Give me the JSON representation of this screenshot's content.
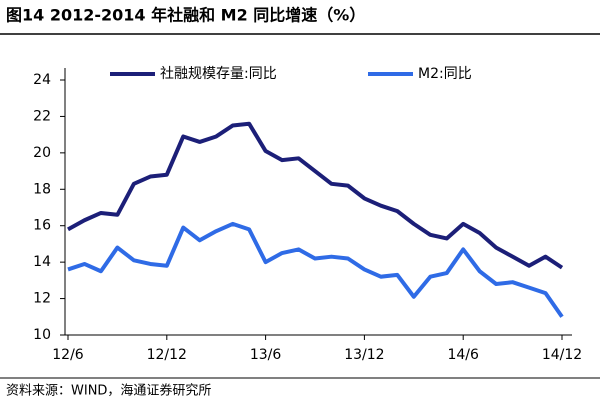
{
  "chart_data": {
    "type": "line",
    "title": "图14 2012-2014 年社融和 M2 同比增速（%）",
    "source": "资料来源：WIND，海通证券研究所",
    "categories": [
      "12/6",
      null,
      null,
      null,
      null,
      null,
      "12/12",
      null,
      null,
      null,
      null,
      null,
      "13/6",
      null,
      null,
      null,
      null,
      null,
      "13/12",
      null,
      null,
      null,
      null,
      null,
      "14/6",
      null,
      null,
      null,
      null,
      null,
      "14/12"
    ],
    "series": [
      {
        "name": "社融规模存量:同比",
        "color": "#1c1f78",
        "values": [
          15.8,
          16.3,
          16.7,
          16.6,
          18.3,
          18.7,
          18.8,
          20.9,
          20.6,
          20.9,
          21.5,
          21.6,
          20.1,
          19.6,
          19.7,
          19.0,
          18.3,
          18.2,
          17.5,
          17.1,
          16.8,
          16.1,
          15.5,
          15.3,
          16.1,
          15.6,
          14.8,
          14.3,
          13.8,
          14.3,
          13.7
        ]
      },
      {
        "name": "M2:同比",
        "color": "#2f6be6",
        "values": [
          13.6,
          13.9,
          13.5,
          14.8,
          14.1,
          13.9,
          13.8,
          15.9,
          15.2,
          15.7,
          16.1,
          15.8,
          14.0,
          14.5,
          14.7,
          14.2,
          14.3,
          14.2,
          13.6,
          13.2,
          13.3,
          12.1,
          13.2,
          13.4,
          14.7,
          13.5,
          12.8,
          12.9,
          12.6,
          12.3,
          11.0
        ]
      }
    ],
    "ylim": [
      10,
      24
    ],
    "yticks": [
      10,
      12,
      14,
      16,
      18,
      20,
      22,
      24
    ]
  }
}
